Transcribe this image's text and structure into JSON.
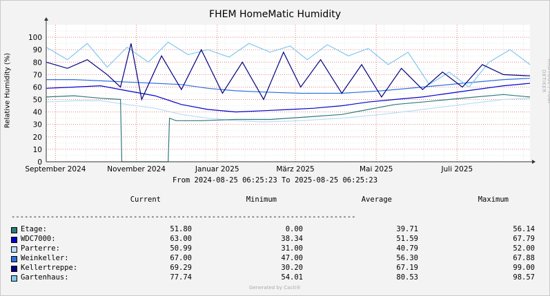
{
  "chart_data": {
    "type": "line",
    "title": "FHEM HomeMatic Humidity",
    "ylabel": "Relative Humidity (%)",
    "xlabel": "",
    "ylim": [
      0,
      110
    ],
    "yticks": [
      0,
      10,
      20,
      30,
      40,
      50,
      60,
      70,
      80,
      90,
      100
    ],
    "xlim": [
      "2024-08-25",
      "2025-08-25"
    ],
    "xticks": [
      {
        "label": "September 2024",
        "date": "2024-09-01"
      },
      {
        "label": "November 2024",
        "date": "2024-11-01"
      },
      {
        "label": "Januar 2025",
        "date": "2025-01-01"
      },
      {
        "label": "März 2025",
        "date": "2025-03-01"
      },
      {
        "label": "Mai 2025",
        "date": "2025-05-01"
      },
      {
        "label": "Juli 2025",
        "date": "2025-07-01"
      }
    ],
    "grid": true,
    "range_text": "From 2024-08-25 06:25:23 To 2025-08-25 06:25:23",
    "legend_headers": [
      "Current",
      "Minimum",
      "Average",
      "Maximum"
    ],
    "series": [
      {
        "name": "Etage:",
        "color": "#2E7A7A",
        "current": "51.80",
        "minimum": "0.00",
        "average": "39.71",
        "maximum": "56.14",
        "x": [
          "2024-08-25",
          "2024-09-15",
          "2024-10-05",
          "2024-10-20",
          "2024-10-21",
          "2024-11-05",
          "2024-11-25",
          "2024-11-26",
          "2024-12-01",
          "2024-12-20",
          "2025-01-15",
          "2025-02-10",
          "2025-03-10",
          "2025-04-05",
          "2025-04-25",
          "2025-05-15",
          "2025-06-05",
          "2025-06-25",
          "2025-07-15",
          "2025-08-05",
          "2025-08-25"
        ],
        "y": [
          52,
          53,
          51,
          50,
          0,
          0,
          0,
          35,
          33,
          33,
          34,
          34,
          36,
          38,
          42,
          46,
          48,
          50,
          52,
          54,
          52
        ]
      },
      {
        "name": "WDC7000:",
        "color": "#0000CC",
        "current": "63.00",
        "minimum": "38.34",
        "average": "51.59",
        "maximum": "67.79",
        "x": [
          "2024-08-25",
          "2024-09-15",
          "2024-10-05",
          "2024-10-25",
          "2024-11-15",
          "2024-12-05",
          "2024-12-25",
          "2025-01-15",
          "2025-02-05",
          "2025-02-25",
          "2025-03-15",
          "2025-04-05",
          "2025-04-25",
          "2025-05-15",
          "2025-06-05",
          "2025-06-25",
          "2025-07-15",
          "2025-08-05",
          "2025-08-25"
        ],
        "y": [
          59,
          60,
          61,
          57,
          53,
          46,
          42,
          40,
          41,
          42,
          43,
          45,
          48,
          50,
          52,
          55,
          58,
          61,
          63
        ]
      },
      {
        "name": "Parterre:",
        "color": "#B8DDF5",
        "current": "50.99",
        "minimum": "31.00",
        "average": "40.79",
        "maximum": "52.00",
        "x": [
          "2024-08-25",
          "2024-09-15",
          "2024-10-05",
          "2024-10-25",
          "2024-11-15",
          "2024-12-05",
          "2024-12-25",
          "2025-01-15",
          "2025-02-05",
          "2025-03-05",
          "2025-04-05",
          "2025-05-05",
          "2025-06-05",
          "2025-07-05",
          "2025-08-05",
          "2025-08-25"
        ],
        "y": [
          48,
          49,
          49,
          46,
          43,
          38,
          35,
          33,
          32,
          33,
          35,
          38,
          42,
          46,
          50,
          51
        ]
      },
      {
        "name": "Weinkeller:",
        "color": "#2F6FDF",
        "current": "67.00",
        "minimum": "47.00",
        "average": "56.30",
        "maximum": "67.88",
        "x": [
          "2024-08-25",
          "2024-09-15",
          "2024-10-05",
          "2024-10-25",
          "2024-11-15",
          "2024-12-05",
          "2024-12-25",
          "2025-01-15",
          "2025-02-05",
          "2025-03-05",
          "2025-04-05",
          "2025-05-05",
          "2025-06-05",
          "2025-07-05",
          "2025-08-05",
          "2025-08-25"
        ],
        "y": [
          66,
          66,
          65,
          64,
          63,
          62,
          59,
          57,
          56,
          55,
          55,
          57,
          60,
          63,
          66,
          67
        ]
      },
      {
        "name": "Kellertreppe:",
        "color": "#000080",
        "current": "69.29",
        "minimum": "30.20",
        "average": "67.19",
        "maximum": "99.00",
        "x": [
          "2024-08-25",
          "2024-09-10",
          "2024-09-25",
          "2024-10-10",
          "2024-10-20",
          "2024-10-28",
          "2024-11-05",
          "2024-11-20",
          "2024-12-05",
          "2024-12-20",
          "2025-01-05",
          "2025-01-20",
          "2025-02-05",
          "2025-02-20",
          "2025-03-05",
          "2025-03-20",
          "2025-04-05",
          "2025-04-20",
          "2025-05-05",
          "2025-05-20",
          "2025-06-05",
          "2025-06-20",
          "2025-07-05",
          "2025-07-20",
          "2025-08-05",
          "2025-08-25"
        ],
        "y": [
          80,
          75,
          82,
          70,
          60,
          95,
          50,
          85,
          58,
          90,
          55,
          80,
          50,
          88,
          60,
          82,
          55,
          78,
          52,
          75,
          58,
          72,
          60,
          78,
          70,
          69
        ]
      },
      {
        "name": "Gartenhaus:",
        "color": "#7EC8F0",
        "current": "77.74",
        "minimum": "54.01",
        "average": "80.53",
        "maximum": "98.57",
        "x": [
          "2024-08-25",
          "2024-09-10",
          "2024-09-25",
          "2024-10-10",
          "2024-10-25",
          "2024-11-10",
          "2024-11-25",
          "2024-12-10",
          "2024-12-25",
          "2025-01-10",
          "2025-01-25",
          "2025-02-10",
          "2025-02-25",
          "2025-03-10",
          "2025-03-25",
          "2025-04-10",
          "2025-04-25",
          "2025-05-10",
          "2025-05-25",
          "2025-06-10",
          "2025-06-25",
          "2025-07-10",
          "2025-07-25",
          "2025-08-10",
          "2025-08-25"
        ],
        "y": [
          92,
          82,
          95,
          76,
          92,
          80,
          96,
          86,
          90,
          84,
          95,
          88,
          93,
          82,
          94,
          85,
          91,
          78,
          88,
          62,
          72,
          60,
          80,
          90,
          78
        ]
      }
    ]
  },
  "watermark": "RRDTOOL / TOBI OETIKER",
  "footer": "Generated by Cacti®"
}
